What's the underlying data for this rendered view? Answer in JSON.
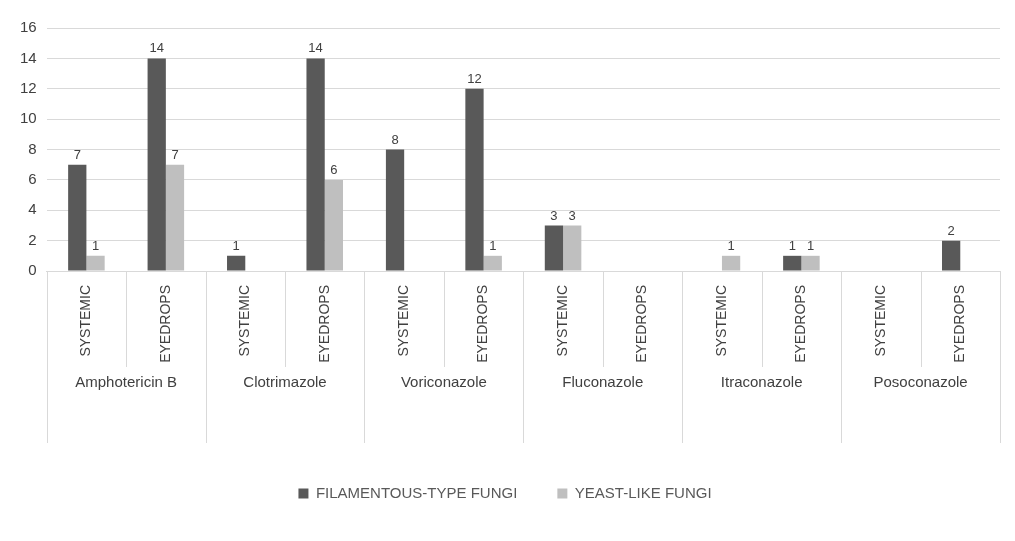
{
  "chart_data": {
    "type": "bar",
    "categories": [
      "SYSTEMIC",
      "EYEDROPS",
      "SYSTEMIC",
      "EYEDROPS",
      "SYSTEMIC",
      "EYEDROPS",
      "SYSTEMIC",
      "EYEDROPS",
      "SYSTEMIC",
      "EYEDROPS",
      "SYSTEMIC",
      "EYEDROPS"
    ],
    "series": [
      {
        "name": "FILAMENTOUS-TYPE FUNGI",
        "color": "#595959",
        "values": [
          7,
          14,
          1,
          14,
          8,
          12,
          3,
          null,
          null,
          1,
          null,
          2
        ]
      },
      {
        "name": "YEAST-LIKE FUNGI",
        "color": "#bfbfbf",
        "values": [
          1,
          7,
          null,
          6,
          null,
          1,
          3,
          null,
          1,
          1,
          null,
          null
        ]
      }
    ],
    "annotations": [
      "Amphotericin B",
      "Clotrimazole",
      "Voriconazole",
      "Fluconazole",
      "Itraconazole",
      "Posoconazole"
    ],
    "ylim": [
      0,
      16
    ],
    "yticks": [
      0,
      2,
      4,
      6,
      8,
      10,
      12,
      14,
      16
    ],
    "grid": "y",
    "legend": "bottom",
    "data_labels": true
  }
}
